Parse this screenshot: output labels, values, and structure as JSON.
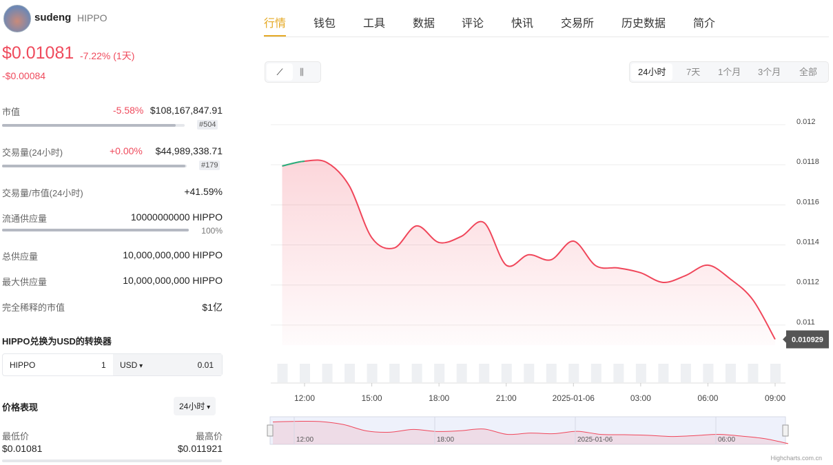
{
  "header": {
    "name": "sudeng",
    "symbol": "HIPPO",
    "price": "$0.01081",
    "change": "-7.22% (1天)",
    "change_abs": "-$0.00084"
  },
  "stats": [
    {
      "label": "市值",
      "change": "-5.58%",
      "value": "$108,167,847.91",
      "rank": "#504"
    },
    {
      "label": "交易量(24小时)",
      "change": "+0.00%",
      "value": "$44,989,338.71",
      "rank": "#179"
    },
    {
      "label": "交易量/市值(24小时)",
      "value": "+41.59%"
    },
    {
      "label": "流通供应量",
      "value": "10000000000 HIPPO",
      "percent": "100%"
    },
    {
      "label": "总供应量",
      "value": "10,000,000,000 HIPPO"
    },
    {
      "label": "最大供应量",
      "value": "10,000,000,000 HIPPO"
    },
    {
      "label": "完全稀释的市值",
      "value": "$1亿"
    }
  ],
  "converter": {
    "title": "HIPPO兑换为USD的转换器",
    "from": "HIPPO",
    "from_amount": "1",
    "to": "USD",
    "to_amount": "0.01"
  },
  "performance": {
    "title": "价格表现",
    "period": "24小时",
    "low_label": "最低价",
    "high_label": "最高价",
    "low": "$0.01081",
    "high": "$0.011921"
  },
  "tabs": [
    "行情",
    "钱包",
    "工具",
    "数据",
    "评论",
    "快讯",
    "交易所",
    "历史数据",
    "简介"
  ],
  "periods": [
    "24小时",
    "7天",
    "1个月",
    "3个月",
    "全部"
  ],
  "chart_data": {
    "type": "line",
    "categories": [
      null,
      "12:00",
      null,
      null,
      "15:00",
      null,
      null,
      "18:00",
      null,
      null,
      "21:00",
      null,
      null,
      "2025-01-06",
      null,
      null,
      "03:00",
      null,
      null,
      "06:00",
      null,
      null,
      "09:00"
    ],
    "series": [
      {
        "color": "#f0465a",
        "values": [
          0.011794,
          0.011818,
          0.011811,
          0.011694,
          0.011436,
          0.011385,
          0.011495,
          0.011412,
          0.011443,
          0.011512,
          0.011299,
          0.011351,
          0.011326,
          0.011419,
          0.011296,
          0.011285,
          0.011261,
          0.011213,
          0.011247,
          0.011299,
          0.01123,
          0.011127,
          0.010929
        ]
      }
    ],
    "ylim": [
      0.0109,
      0.012
    ],
    "yticks": [
      0.012,
      0.0118,
      0.0116,
      0.0114,
      0.0112,
      0.011
    ],
    "grid": true,
    "last_value": 0.010929
  },
  "navigator": {
    "labels": [
      "12:00",
      "18:00",
      "2025-01-06",
      "06:00"
    ]
  },
  "credit": "Highcharts.com.cn"
}
